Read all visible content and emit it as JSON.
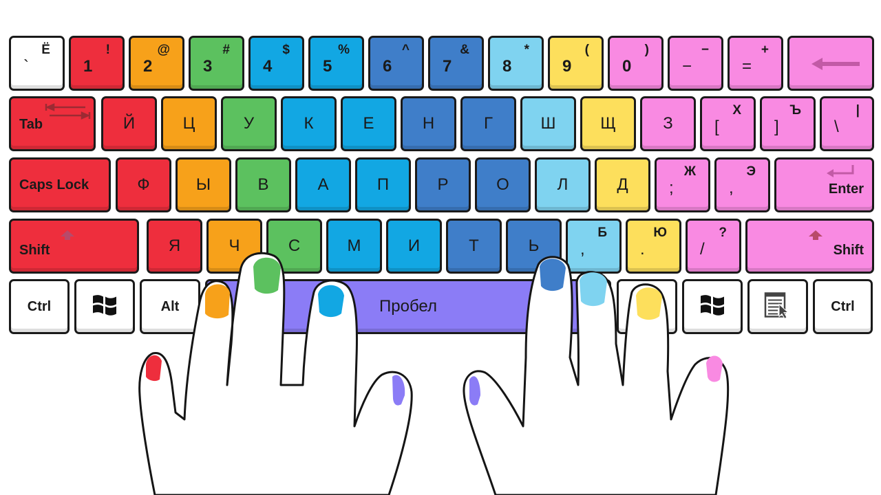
{
  "colors": {
    "pinky_left": "#ee2e3d",
    "ring_left": "#f7a11a",
    "middle_left": "#5cc15f",
    "index_left": "#12a7e3",
    "index_right": "#3f7ec9",
    "middle_right": "#7fd3f0",
    "ring_right": "#fddf5c",
    "pinky_right": "#f98ae2",
    "thumbs": "#8b7cf6",
    "neutral": "#ffffff"
  },
  "rows": [
    [
      {
        "main": "`",
        "top": "Ё",
        "color": "neutral"
      },
      {
        "main": "1",
        "top": "!",
        "color": "pinky_left"
      },
      {
        "main": "2",
        "top": "@",
        "color": "ring_left"
      },
      {
        "main": "3",
        "top": "#",
        "color": "middle_left"
      },
      {
        "main": "4",
        "top": "$",
        "color": "index_left"
      },
      {
        "main": "5",
        "top": "%",
        "color": "index_left"
      },
      {
        "main": "6",
        "top": "^",
        "color": "index_right"
      },
      {
        "main": "7",
        "top": "&",
        "color": "index_right"
      },
      {
        "main": "8",
        "top": "*",
        "color": "middle_right"
      },
      {
        "main": "9",
        "top": "(",
        "color": "ring_right"
      },
      {
        "main": "0",
        "top": ")",
        "color": "pinky_right"
      },
      {
        "main": "−",
        "top": "−",
        "color": "pinky_right"
      },
      {
        "main": "=",
        "top": "+",
        "color": "pinky_right"
      },
      {
        "main": "",
        "top": "",
        "icon": "backspace-arrow-icon",
        "color": "pinky_right"
      }
    ],
    [
      {
        "word": "Tab",
        "icon": "tab-arrows-icon",
        "color": "pinky_left"
      },
      {
        "main": "Й",
        "color": "pinky_left"
      },
      {
        "main": "Ц",
        "color": "ring_left"
      },
      {
        "main": "У",
        "color": "middle_left"
      },
      {
        "main": "К",
        "color": "index_left"
      },
      {
        "main": "Е",
        "color": "index_left"
      },
      {
        "main": "Н",
        "color": "index_right"
      },
      {
        "main": "Г",
        "color": "index_right"
      },
      {
        "main": "Ш",
        "color": "middle_right"
      },
      {
        "main": "Щ",
        "color": "ring_right"
      },
      {
        "main": "З",
        "color": "pinky_right"
      },
      {
        "main": "[",
        "top": "Х",
        "color": "pinky_right"
      },
      {
        "main": "]",
        "top": "Ъ",
        "color": "pinky_right"
      },
      {
        "main": "\\",
        "top": "|",
        "color": "pinky_right"
      }
    ],
    [
      {
        "word": "Caps Lock",
        "color": "pinky_left"
      },
      {
        "main": "Ф",
        "color": "pinky_left"
      },
      {
        "main": "Ы",
        "color": "ring_left"
      },
      {
        "main": "В",
        "color": "middle_left"
      },
      {
        "main": "А",
        "color": "index_left"
      },
      {
        "main": "П",
        "color": "index_left"
      },
      {
        "main": "Р",
        "color": "index_right"
      },
      {
        "main": "О",
        "color": "index_right"
      },
      {
        "main": "Л",
        "color": "middle_right"
      },
      {
        "main": "Д",
        "color": "ring_right"
      },
      {
        "main": ";",
        "top": "Ж",
        "color": "pinky_right"
      },
      {
        "main": ",",
        "top": "Э",
        "color": "pinky_right"
      },
      {
        "word": "Enter",
        "icon": "enter-arrow-icon",
        "color": "pinky_right"
      }
    ],
    [
      {
        "word": "Shift",
        "icon": "shift-arrow-icon",
        "color": "pinky_left"
      },
      {
        "main": "Я",
        "color": "pinky_left"
      },
      {
        "main": "Ч",
        "color": "ring_left"
      },
      {
        "main": "С",
        "color": "middle_left"
      },
      {
        "main": "М",
        "color": "index_left"
      },
      {
        "main": "И",
        "color": "index_left"
      },
      {
        "main": "Т",
        "color": "index_right"
      },
      {
        "main": "Ь",
        "color": "index_right"
      },
      {
        "main": ",",
        "top": "Б",
        "color": "middle_right"
      },
      {
        "main": ".",
        "top": "Ю",
        "color": "ring_right"
      },
      {
        "main": "/",
        "top": "?",
        "color": "pinky_right"
      },
      {
        "word": "Shift",
        "icon": "shift-arrow-icon",
        "color": "pinky_right"
      }
    ],
    [
      {
        "word": "Ctrl",
        "color": "neutral"
      },
      {
        "word": "",
        "icon": "windows-logo-icon",
        "color": "neutral"
      },
      {
        "word": "Alt",
        "color": "neutral"
      },
      {
        "word": "Пробел",
        "color": "thumbs"
      },
      {
        "word": "",
        "color": "neutral"
      },
      {
        "word": "",
        "icon": "windows-logo-icon",
        "color": "neutral"
      },
      {
        "word": "",
        "icon": "context-menu-icon",
        "color": "neutral"
      },
      {
        "word": "Ctrl",
        "color": "neutral"
      }
    ]
  ]
}
